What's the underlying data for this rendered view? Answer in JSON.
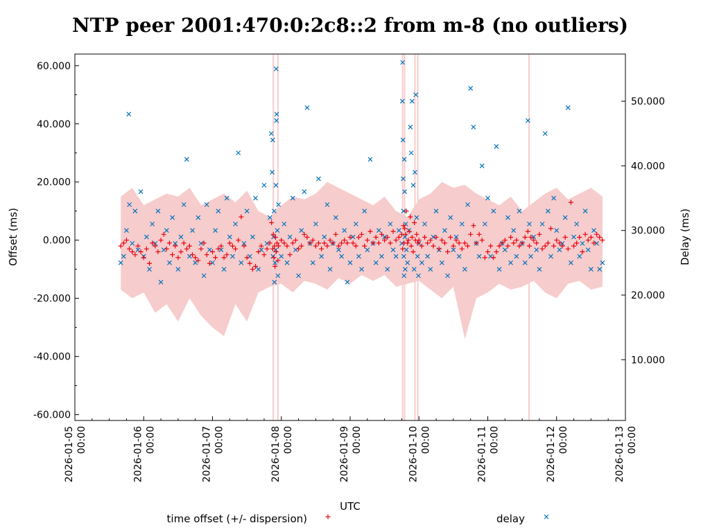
{
  "chart_data": {
    "type": "scatter",
    "title": "NTP peer 2001:470:0:2c8::2 from m-8 (no outliers)",
    "xlabel": "UTC",
    "ylabel": "Offset (ms)",
    "y2label": "Delay (ms)",
    "x_unit": "hours since 2026-01-05 00:00",
    "xlim": [
      0,
      192
    ],
    "ylim": [
      -62,
      64
    ],
    "y2lim": [
      0.6,
      57.3
    ],
    "xticks": [
      {
        "t": 0,
        "date": "2026-01-05",
        "time": "00:00"
      },
      {
        "t": 24,
        "date": "2026-01-06",
        "time": "00:00"
      },
      {
        "t": 48,
        "date": "2026-01-07",
        "time": "00:00"
      },
      {
        "t": 72,
        "date": "2026-01-08",
        "time": "00:00"
      },
      {
        "t": 96,
        "date": "2026-01-09",
        "time": "00:00"
      },
      {
        "t": 120,
        "date": "2026-01-10",
        "time": "00:00"
      },
      {
        "t": 144,
        "date": "2026-01-11",
        "time": "00:00"
      },
      {
        "t": 168,
        "date": "2026-01-12",
        "time": "00:00"
      },
      {
        "t": 192,
        "date": "2026-01-13",
        "time": "00:00"
      }
    ],
    "yticks": [
      "-60.000",
      "-40.000",
      "-20.000",
      "0.000",
      "20.000",
      "40.000",
      "60.000"
    ],
    "y2ticks": [
      "10.000",
      "20.000",
      "30.000",
      "40.000",
      "50.000"
    ],
    "legend": [
      {
        "label": "time offset (+/- dispersion)",
        "marker": "+",
        "color": "#e8000b"
      },
      {
        "label": "delay",
        "marker": "×",
        "color": "#0072bd"
      }
    ],
    "legend_placement": "bottom",
    "colors": {
      "offset": "#e8000b",
      "delay": "#0072bd",
      "dispersion": "#f7cccc"
    },
    "dispersion_band": {
      "t": [
        16,
        20,
        24,
        28,
        32,
        36,
        40,
        44,
        48,
        52,
        56,
        60,
        64,
        68,
        72,
        76,
        80,
        84,
        88,
        92,
        96,
        100,
        104,
        108,
        112,
        116,
        120,
        124,
        128,
        132,
        136,
        140,
        144,
        148,
        152,
        156,
        160,
        164,
        168,
        172,
        176,
        180,
        184
      ],
      "upper": [
        15,
        18,
        12,
        14,
        16,
        15,
        18,
        12,
        14,
        16,
        13,
        17,
        10,
        8,
        12,
        15,
        14,
        16,
        20,
        18,
        16,
        14,
        12,
        15,
        10,
        8,
        14,
        16,
        20,
        18,
        19,
        16,
        14,
        12,
        15,
        10,
        13,
        16,
        18,
        14,
        16,
        18,
        15
      ],
      "lower": [
        -17,
        -20,
        -18,
        -25,
        -22,
        -28,
        -20,
        -26,
        -30,
        -33,
        -22,
        -28,
        -18,
        -16,
        -15,
        -18,
        -14,
        -15,
        -17,
        -13,
        -15,
        -12,
        -14,
        -12,
        -16,
        -15,
        -14,
        -17,
        -20,
        -16,
        -34,
        -20,
        -18,
        -15,
        -17,
        -16,
        -14,
        -18,
        -20,
        -15,
        -14,
        -17,
        -16
      ]
    },
    "dispersion_spikes_t": [
      69.2,
      70.8,
      114.3,
      115,
      118.6,
      119.6,
      158.4
    ],
    "offset_points": [
      [
        16,
        -2
      ],
      [
        17,
        -1
      ],
      [
        18,
        0
      ],
      [
        19,
        -3
      ],
      [
        20,
        -4
      ],
      [
        21,
        -5
      ],
      [
        22,
        -2
      ],
      [
        23,
        -4
      ],
      [
        24,
        -6
      ],
      [
        25,
        -3
      ],
      [
        26,
        -8
      ],
      [
        27,
        -1
      ],
      [
        28,
        -2
      ],
      [
        29,
        -4
      ],
      [
        30,
        0
      ],
      [
        31,
        2
      ],
      [
        32,
        -3
      ],
      [
        33,
        -1
      ],
      [
        34,
        -5
      ],
      [
        35,
        -2
      ],
      [
        36,
        -6
      ],
      [
        37,
        -4
      ],
      [
        38,
        -1
      ],
      [
        39,
        -3
      ],
      [
        40,
        -2
      ],
      [
        41,
        -5
      ],
      [
        42,
        -6
      ],
      [
        43,
        -7
      ],
      [
        44,
        -3
      ],
      [
        45,
        -1
      ],
      [
        46,
        -5
      ],
      [
        47,
        -8
      ],
      [
        48,
        -4
      ],
      [
        49,
        -6
      ],
      [
        50,
        -3
      ],
      [
        51,
        -2
      ],
      [
        52,
        -6
      ],
      [
        53,
        -5
      ],
      [
        54,
        -1
      ],
      [
        55,
        -2
      ],
      [
        56,
        -3
      ],
      [
        57,
        0
      ],
      [
        58,
        8
      ],
      [
        59,
        -2
      ],
      [
        60,
        -6
      ],
      [
        61,
        -8
      ],
      [
        62,
        -10
      ],
      [
        63,
        -9
      ],
      [
        64,
        -4
      ],
      [
        65,
        -2
      ],
      [
        66,
        -5
      ],
      [
        67,
        -3
      ],
      [
        68,
        -1
      ],
      [
        68.6,
        6
      ],
      [
        69,
        -3
      ],
      [
        69.2,
        2
      ],
      [
        69.4,
        -6
      ],
      [
        69.6,
        -2
      ],
      [
        69.8,
        -9
      ],
      [
        70,
        1
      ],
      [
        70.2,
        -4
      ],
      [
        70.5,
        -1
      ],
      [
        70.8,
        -7
      ],
      [
        71,
        -2
      ],
      [
        72,
        0
      ],
      [
        73,
        -1
      ],
      [
        74,
        -2
      ],
      [
        75,
        -5
      ],
      [
        76,
        -1
      ],
      [
        77,
        0
      ],
      [
        78,
        -3
      ],
      [
        79,
        -2
      ],
      [
        80,
        2
      ],
      [
        81,
        1
      ],
      [
        82,
        -1
      ],
      [
        83,
        0
      ],
      [
        84,
        -2
      ],
      [
        85,
        -1
      ],
      [
        86,
        -3
      ],
      [
        87,
        -1
      ],
      [
        88,
        -2
      ],
      [
        89,
        0
      ],
      [
        90,
        -1
      ],
      [
        91,
        2
      ],
      [
        92,
        -2
      ],
      [
        93,
        -1
      ],
      [
        94,
        0
      ],
      [
        95,
        -1
      ],
      [
        96,
        1
      ],
      [
        97,
        -1
      ],
      [
        98,
        -2
      ],
      [
        99,
        1
      ],
      [
        100,
        2
      ],
      [
        101,
        -2
      ],
      [
        102,
        0
      ],
      [
        103,
        3
      ],
      [
        104,
        -1
      ],
      [
        105,
        1
      ],
      [
        106,
        -1
      ],
      [
        107,
        2
      ],
      [
        108,
        0
      ],
      [
        109,
        1
      ],
      [
        110,
        -1
      ],
      [
        111,
        3
      ],
      [
        112,
        0
      ],
      [
        113,
        1
      ],
      [
        114,
        2
      ],
      [
        114.3,
        -3
      ],
      [
        114.6,
        5
      ],
      [
        114.8,
        -1
      ],
      [
        115,
        4
      ],
      [
        115.3,
        2
      ],
      [
        115.6,
        10
      ],
      [
        116,
        -1
      ],
      [
        116.3,
        0
      ],
      [
        116.6,
        3
      ],
      [
        117,
        8
      ],
      [
        117.3,
        -2
      ],
      [
        117.6,
        1
      ],
      [
        118,
        -4
      ],
      [
        118.4,
        6
      ],
      [
        118.8,
        0
      ],
      [
        119.2,
        2
      ],
      [
        119.6,
        -1
      ],
      [
        120,
        0
      ],
      [
        121,
        -2
      ],
      [
        122,
        1
      ],
      [
        123,
        -1
      ],
      [
        124,
        0
      ],
      [
        125,
        -2
      ],
      [
        126,
        1
      ],
      [
        127,
        -3
      ],
      [
        128,
        0
      ],
      [
        129,
        -1
      ],
      [
        130,
        -4
      ],
      [
        131,
        1
      ],
      [
        132,
        -2
      ],
      [
        133,
        0
      ],
      [
        134,
        -1
      ],
      [
        135,
        -3
      ],
      [
        136,
        -1
      ],
      [
        137,
        -2
      ],
      [
        138,
        2
      ],
      [
        139,
        5
      ],
      [
        140,
        -1
      ],
      [
        141,
        2
      ],
      [
        142,
        0
      ],
      [
        143,
        -6
      ],
      [
        144,
        -4
      ],
      [
        145,
        -2
      ],
      [
        146,
        -6
      ],
      [
        147,
        -4
      ],
      [
        148,
        -2
      ],
      [
        149,
        -1
      ],
      [
        150,
        0
      ],
      [
        151,
        -2
      ],
      [
        152,
        1
      ],
      [
        153,
        -1
      ],
      [
        154,
        0
      ],
      [
        155,
        -2
      ],
      [
        156,
        -1
      ],
      [
        157,
        1
      ],
      [
        158,
        3
      ],
      [
        158.5,
        -2
      ],
      [
        159,
        1
      ],
      [
        160,
        0
      ],
      [
        161,
        -1
      ],
      [
        162,
        2
      ],
      [
        163,
        -3
      ],
      [
        164,
        -2
      ],
      [
        165,
        -1
      ],
      [
        166,
        4
      ],
      [
        167,
        -2
      ],
      [
        168,
        0
      ],
      [
        169,
        -1
      ],
      [
        170,
        -2
      ],
      [
        171,
        1
      ],
      [
        172,
        -3
      ],
      [
        173,
        13
      ],
      [
        174,
        -2
      ],
      [
        175,
        -1
      ],
      [
        176,
        1
      ],
      [
        177,
        -4
      ],
      [
        178,
        2
      ],
      [
        179,
        0
      ],
      [
        180,
        1
      ],
      [
        181,
        -1
      ],
      [
        182,
        2
      ],
      [
        183,
        1
      ],
      [
        184,
        0
      ]
    ],
    "delay_points": [
      [
        16,
        25
      ],
      [
        17,
        26
      ],
      [
        18,
        30
      ],
      [
        18.8,
        48
      ],
      [
        19,
        34
      ],
      [
        20,
        28
      ],
      [
        21,
        33
      ],
      [
        22,
        27
      ],
      [
        23,
        36
      ],
      [
        24,
        26
      ],
      [
        25,
        29
      ],
      [
        26,
        24
      ],
      [
        27,
        31
      ],
      [
        28,
        28
      ],
      [
        29,
        33
      ],
      [
        30,
        22
      ],
      [
        31,
        27
      ],
      [
        32,
        30
      ],
      [
        33,
        25
      ],
      [
        34,
        32
      ],
      [
        35,
        28
      ],
      [
        36,
        24
      ],
      [
        37,
        29
      ],
      [
        38,
        34
      ],
      [
        39,
        41
      ],
      [
        40,
        26
      ],
      [
        41,
        30
      ],
      [
        42,
        25
      ],
      [
        43,
        32
      ],
      [
        44,
        28
      ],
      [
        45,
        23
      ],
      [
        46,
        34
      ],
      [
        47,
        27
      ],
      [
        48,
        25
      ],
      [
        49,
        30
      ],
      [
        50,
        33
      ],
      [
        51,
        27
      ],
      [
        52,
        24
      ],
      [
        53,
        35
      ],
      [
        54,
        29
      ],
      [
        55,
        26
      ],
      [
        56,
        31
      ],
      [
        57,
        42
      ],
      [
        58,
        25
      ],
      [
        59,
        28
      ],
      [
        60,
        33
      ],
      [
        61,
        26
      ],
      [
        62,
        29
      ],
      [
        63,
        35
      ],
      [
        64,
        24
      ],
      [
        65,
        27
      ],
      [
        66,
        37
      ],
      [
        67,
        28
      ],
      [
        68,
        32
      ],
      [
        68.5,
        45
      ],
      [
        68.8,
        39
      ],
      [
        69,
        44
      ],
      [
        69.1,
        26
      ],
      [
        69.3,
        29
      ],
      [
        69.5,
        33
      ],
      [
        69.6,
        22
      ],
      [
        69.8,
        25
      ],
      [
        70,
        27
      ],
      [
        70.1,
        37
      ],
      [
        70.2,
        55
      ],
      [
        70.3,
        47
      ],
      [
        70.4,
        48
      ],
      [
        70.6,
        30
      ],
      [
        70.8,
        23
      ],
      [
        71,
        34
      ],
      [
        72,
        26
      ],
      [
        73,
        31
      ],
      [
        74,
        25
      ],
      [
        75,
        29
      ],
      [
        76,
        35
      ],
      [
        77,
        27
      ],
      [
        78,
        23
      ],
      [
        79,
        30
      ],
      [
        80,
        36
      ],
      [
        81,
        49
      ],
      [
        82,
        28
      ],
      [
        83,
        25
      ],
      [
        84,
        31
      ],
      [
        85,
        38
      ],
      [
        86,
        26
      ],
      [
        87,
        29
      ],
      [
        88,
        34
      ],
      [
        89,
        24
      ],
      [
        90,
        28
      ],
      [
        91,
        32
      ],
      [
        92,
        27
      ],
      [
        93,
        26
      ],
      [
        94,
        30
      ],
      [
        95,
        22
      ],
      [
        96,
        25
      ],
      [
        97,
        29
      ],
      [
        98,
        31
      ],
      [
        99,
        26
      ],
      [
        100,
        24
      ],
      [
        101,
        33
      ],
      [
        102,
        27
      ],
      [
        103,
        41
      ],
      [
        104,
        28
      ],
      [
        105,
        25
      ],
      [
        106,
        30
      ],
      [
        107,
        26
      ],
      [
        108,
        29
      ],
      [
        109,
        24
      ],
      [
        110,
        31
      ],
      [
        111,
        27
      ],
      [
        112,
        26
      ],
      [
        113,
        30
      ],
      [
        114,
        28
      ],
      [
        114.2,
        50
      ],
      [
        114.3,
        56
      ],
      [
        114.4,
        44
      ],
      [
        114.5,
        38
      ],
      [
        114.6,
        33
      ],
      [
        114.7,
        26
      ],
      [
        114.8,
        23
      ],
      [
        114.9,
        41
      ],
      [
        115,
        36
      ],
      [
        115.1,
        29
      ],
      [
        115.2,
        24
      ],
      [
        115.4,
        31
      ],
      [
        115.6,
        27
      ],
      [
        116,
        25
      ],
      [
        116.5,
        30
      ],
      [
        117,
        46
      ],
      [
        117.3,
        42
      ],
      [
        117.6,
        50
      ],
      [
        118,
        37
      ],
      [
        118.3,
        24
      ],
      [
        118.6,
        39
      ],
      [
        118.9,
        51
      ],
      [
        119.2,
        32
      ],
      [
        119.5,
        26
      ],
      [
        119.8,
        23
      ],
      [
        120,
        28
      ],
      [
        121,
        25
      ],
      [
        122,
        31
      ],
      [
        123,
        26
      ],
      [
        124,
        24
      ],
      [
        125,
        29
      ],
      [
        126,
        33
      ],
      [
        127,
        27
      ],
      [
        128,
        25
      ],
      [
        129,
        30
      ],
      [
        130,
        23
      ],
      [
        131,
        32
      ],
      [
        132,
        27
      ],
      [
        133,
        29
      ],
      [
        134,
        26
      ],
      [
        135,
        31
      ],
      [
        136,
        24
      ],
      [
        137,
        34
      ],
      [
        138,
        52
      ],
      [
        139,
        46
      ],
      [
        140,
        28
      ],
      [
        141,
        26
      ],
      [
        142,
        40
      ],
      [
        143,
        31
      ],
      [
        144,
        35
      ],
      [
        145,
        26
      ],
      [
        146,
        33
      ],
      [
        147,
        43
      ],
      [
        148,
        24
      ],
      [
        149,
        28
      ],
      [
        150,
        27
      ],
      [
        151,
        32
      ],
      [
        152,
        25
      ],
      [
        153,
        30
      ],
      [
        154,
        26
      ],
      [
        155,
        33
      ],
      [
        156,
        28
      ],
      [
        157,
        25
      ],
      [
        158,
        47
      ],
      [
        158.5,
        31
      ],
      [
        159,
        26
      ],
      [
        160,
        29
      ],
      [
        161,
        27
      ],
      [
        162,
        24
      ],
      [
        163,
        31
      ],
      [
        164,
        45
      ],
      [
        165,
        33
      ],
      [
        166,
        26
      ],
      [
        167,
        35
      ],
      [
        168,
        30
      ],
      [
        169,
        27
      ],
      [
        170,
        28
      ],
      [
        171,
        32
      ],
      [
        172,
        49
      ],
      [
        173,
        25
      ],
      [
        174,
        29
      ],
      [
        175,
        31
      ],
      [
        176,
        26
      ],
      [
        177,
        28
      ],
      [
        178,
        33
      ],
      [
        179,
        27
      ],
      [
        180,
        24
      ],
      [
        181,
        30
      ],
      [
        182,
        28
      ],
      [
        183,
        24
      ],
      [
        184,
        25
      ]
    ]
  }
}
